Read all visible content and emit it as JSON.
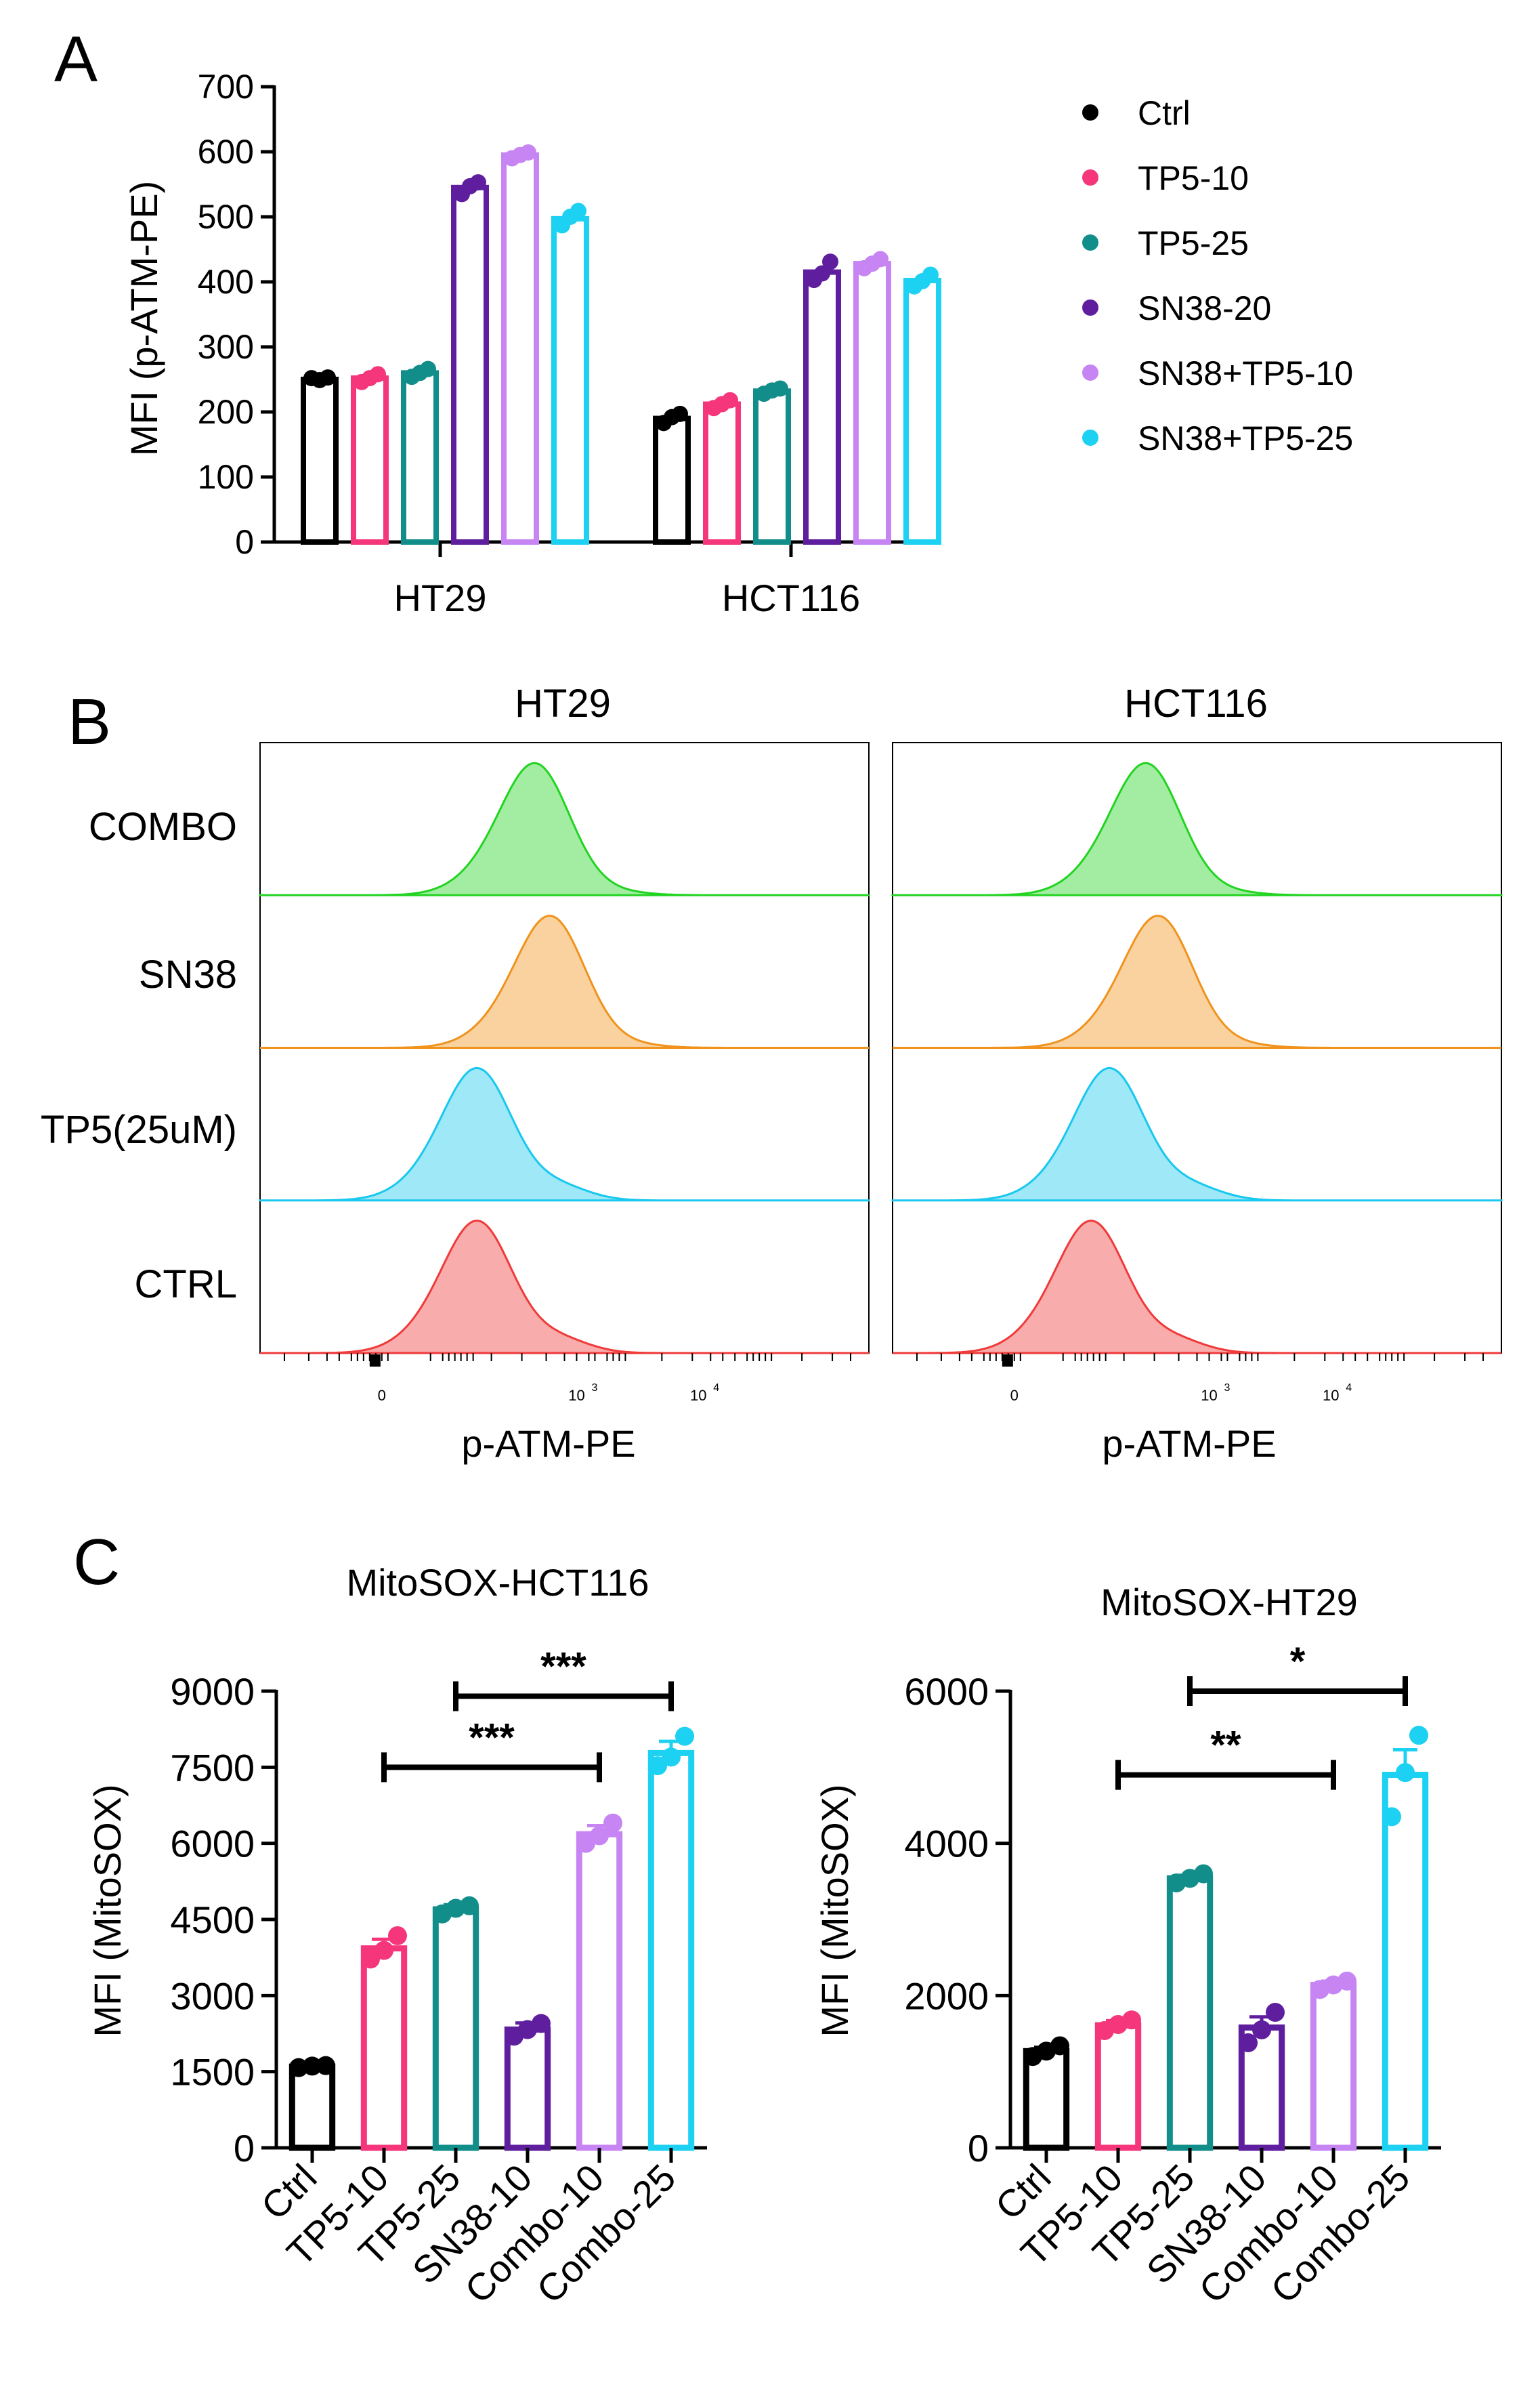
{
  "figure": {
    "panels": [
      "A",
      "B",
      "C"
    ]
  },
  "chart_data": [
    {
      "id": "A",
      "type": "bar",
      "title": "",
      "xlabel": "",
      "ylabel": "MFI (p-ATM-PE)",
      "ylim": [
        0,
        700
      ],
      "yticks": [
        0,
        100,
        200,
        300,
        400,
        500,
        600,
        700
      ],
      "categories": [
        "HT29",
        "HCT116"
      ],
      "series": [
        {
          "name": "Ctrl",
          "color": "#000000",
          "values": [
            250,
            190
          ],
          "points": [
            [
              252,
              249,
              253
            ],
            [
              183,
              192,
              197
            ]
          ]
        },
        {
          "name": "TP5-10",
          "color": "#f5367a",
          "values": [
            252,
            212
          ],
          "points": [
            [
              246,
              252,
              258
            ],
            [
              206,
              212,
              218
            ]
          ]
        },
        {
          "name": "TP5-25",
          "color": "#128e8a",
          "values": [
            260,
            232
          ],
          "points": [
            [
              254,
              260,
              266
            ],
            [
              228,
              233,
              236
            ]
          ]
        },
        {
          "name": "SN38-20",
          "color": "#5f1e9e",
          "values": [
            545,
            415
          ],
          "points": [
            [
              535,
              547,
              553
            ],
            [
              403,
              413,
              431
            ]
          ]
        },
        {
          "name": "SN38+TP5-10",
          "color": "#c785f4",
          "values": [
            595,
            428
          ],
          "points": [
            [
              590,
              595,
              599
            ],
            [
              421,
              428,
              435
            ]
          ]
        },
        {
          "name": "SN38+TP5-25",
          "color": "#1cd1f1",
          "values": [
            497,
            402
          ],
          "points": [
            [
              487,
              500,
              509
            ],
            [
              393,
              401,
              411
            ]
          ]
        }
      ],
      "legend_position": "right"
    },
    {
      "id": "B",
      "type": "histogram",
      "columns": [
        "HT29",
        "HCT116"
      ],
      "rows": [
        {
          "label": "COMBO",
          "color": "#22d422",
          "peak_shift": [
            0.455,
            0.42
          ]
        },
        {
          "label": "SN38",
          "color": "#f0931d",
          "peak_shift": [
            0.48,
            0.44
          ]
        },
        {
          "label": "TP5(25uM)",
          "color": "#18c8ee",
          "peak_shift": [
            0.36,
            0.36
          ]
        },
        {
          "label": "CTRL",
          "color": "#f03a3a",
          "peak_shift": [
            0.36,
            0.33
          ]
        }
      ],
      "xlabel": "p-ATM-PE",
      "xticks": [
        {
          "base": "0",
          "exp": ""
        },
        {
          "base": "10",
          "exp": "3"
        },
        {
          "base": "10",
          "exp": "4"
        }
      ]
    },
    {
      "id": "C1",
      "type": "bar",
      "title": "MitoSOX-HCT116",
      "ylabel": "MFI (MitoSOX)",
      "ylim": [
        0,
        9000
      ],
      "yticks": [
        0,
        1500,
        3000,
        4500,
        6000,
        7500,
        9000
      ],
      "categories": [
        "Ctrl",
        "TP5-10",
        "TP5-25",
        "SN38-10",
        "Combo-10",
        "Combo-25"
      ],
      "colors": [
        "#000000",
        "#f5367a",
        "#128e8a",
        "#5f1e9e",
        "#c785f4",
        "#1cd1f1"
      ],
      "values": [
        1600,
        3930,
        4700,
        2330,
        6180,
        7780
      ],
      "errors": [
        30,
        180,
        90,
        130,
        170,
        230
      ],
      "points": [
        [
          1580,
          1610,
          1620
        ],
        [
          3720,
          3890,
          4180
        ],
        [
          4610,
          4720,
          4770
        ],
        [
          2200,
          2330,
          2450
        ],
        [
          6000,
          6150,
          6400
        ],
        [
          7530,
          7700,
          8110
        ]
      ],
      "significance": [
        {
          "from": 1,
          "to": 4,
          "label": "***",
          "level": 7500
        },
        {
          "from": 2,
          "to": 5,
          "label": "***",
          "level": 8900
        }
      ]
    },
    {
      "id": "C2",
      "type": "bar",
      "title": "MitoSOX-HT29",
      "ylabel": "MFI (MitoSOX)",
      "ylim": [
        0,
        6000
      ],
      "yticks": [
        0,
        2000,
        4000,
        6000
      ],
      "categories": [
        "Ctrl",
        "TP5-10",
        "TP5-25",
        "SN38-10",
        "Combo-10",
        "Combo-25"
      ],
      "colors": [
        "#000000",
        "#f5367a",
        "#128e8a",
        "#5f1e9e",
        "#c785f4",
        "#1cd1f1"
      ],
      "values": [
        1270,
        1610,
        3540,
        1580,
        2140,
        4900
      ],
      "errors": [
        50,
        60,
        40,
        140,
        50,
        330
      ],
      "points": [
        [
          1200,
          1270,
          1340
        ],
        [
          1540,
          1620,
          1680
        ],
        [
          3480,
          3540,
          3600
        ],
        [
          1380,
          1550,
          1780
        ],
        [
          2080,
          2140,
          2190
        ],
        [
          4350,
          4930,
          5420
        ]
      ],
      "significance": [
        {
          "from": 1,
          "to": 4,
          "label": "**",
          "level": 4900
        },
        {
          "from": 2,
          "to": 5,
          "label": "*",
          "level": 6000
        }
      ]
    }
  ]
}
